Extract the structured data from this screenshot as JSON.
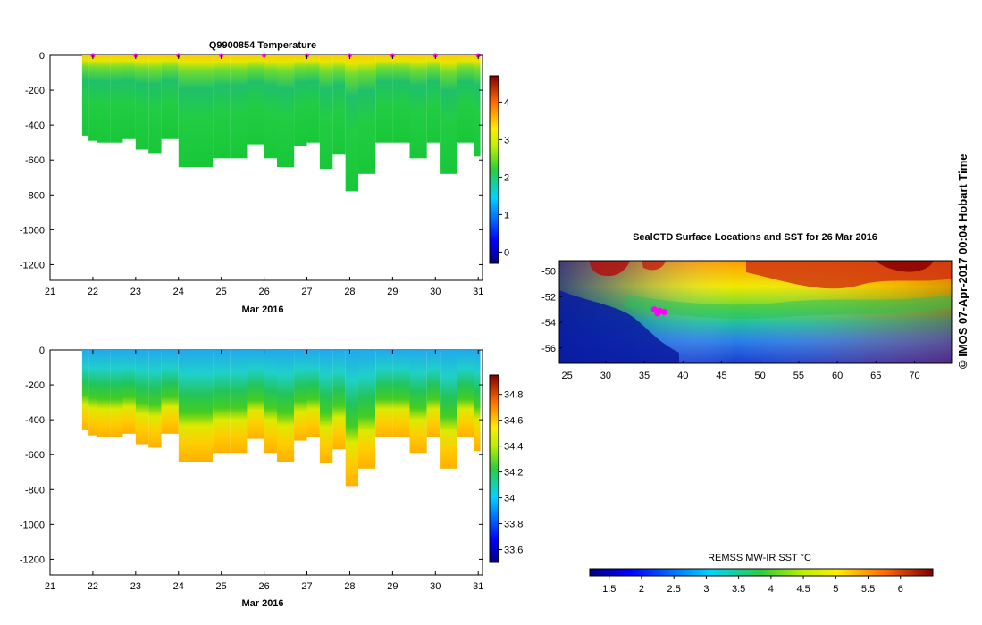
{
  "footer": {
    "credit": "© IMOS 07-Apr-2017 00:04 Hobart Time"
  },
  "chart_data": [
    {
      "id": "temperature-section",
      "type": "heatmap",
      "title": "Q9900854  Temperature",
      "xlabel": "Mar 2016",
      "ylabel": "",
      "x_ticks": [
        "21",
        "22",
        "23",
        "24",
        "25",
        "26",
        "27",
        "28",
        "29",
        "30",
        "31"
      ],
      "xlim": [
        21,
        31.1
      ],
      "y_ticks": [
        0,
        -200,
        -400,
        -600,
        -800,
        -1000,
        -1200
      ],
      "ylim": [
        -1290,
        0
      ],
      "colorbar": {
        "ticks": [
          0,
          1,
          2,
          3,
          4
        ],
        "range": [
          -0.3,
          4.7
        ],
        "colormap": "jet"
      },
      "profiles": [
        {
          "day": 21.75,
          "max_depth": 460
        },
        {
          "day": 21.9,
          "max_depth": 490
        },
        {
          "day": 22.1,
          "max_depth": 500
        },
        {
          "day": 22.4,
          "max_depth": 500
        },
        {
          "day": 22.7,
          "max_depth": 480
        },
        {
          "day": 23.0,
          "max_depth": 540
        },
        {
          "day": 23.3,
          "max_depth": 560
        },
        {
          "day": 23.6,
          "max_depth": 480
        },
        {
          "day": 24.0,
          "max_depth": 640
        },
        {
          "day": 24.4,
          "max_depth": 640
        },
        {
          "day": 24.8,
          "max_depth": 590
        },
        {
          "day": 25.2,
          "max_depth": 590
        },
        {
          "day": 25.6,
          "max_depth": 510
        },
        {
          "day": 26.0,
          "max_depth": 590
        },
        {
          "day": 26.3,
          "max_depth": 640
        },
        {
          "day": 26.7,
          "max_depth": 520
        },
        {
          "day": 27.0,
          "max_depth": 500
        },
        {
          "day": 27.3,
          "max_depth": 650
        },
        {
          "day": 27.6,
          "max_depth": 570
        },
        {
          "day": 27.9,
          "max_depth": 780
        },
        {
          "day": 28.2,
          "max_depth": 680
        },
        {
          "day": 28.6,
          "max_depth": 500
        },
        {
          "day": 29.0,
          "max_depth": 500
        },
        {
          "day": 29.4,
          "max_depth": 590
        },
        {
          "day": 29.8,
          "max_depth": 500
        },
        {
          "day": 30.1,
          "max_depth": 680
        },
        {
          "day": 30.5,
          "max_depth": 500
        },
        {
          "day": 30.9,
          "max_depth": 580
        }
      ],
      "surface_markers": [
        22,
        23,
        24,
        25,
        26,
        27,
        28,
        29,
        30,
        31
      ]
    },
    {
      "id": "salinity-section",
      "type": "heatmap",
      "title": "",
      "xlabel": "Mar 2016",
      "ylabel": "",
      "x_ticks": [
        "21",
        "22",
        "23",
        "24",
        "25",
        "26",
        "27",
        "28",
        "29",
        "30",
        "31"
      ],
      "xlim": [
        21,
        31.1
      ],
      "y_ticks": [
        0,
        -200,
        -400,
        -600,
        -800,
        -1000,
        -1200
      ],
      "ylim": [
        -1290,
        0
      ],
      "colorbar": {
        "ticks": [
          33.6,
          33.8,
          34,
          34.2,
          34.4,
          34.6,
          34.8
        ],
        "labels": [
          "33.6",
          "33.8",
          "34",
          "34.2",
          "34.4",
          "34.6",
          "34.8"
        ],
        "range": [
          33.5,
          34.95
        ],
        "colormap": "jet"
      }
    },
    {
      "id": "sst-map",
      "type": "heatmap",
      "title": "SealCTD Surface Locations and SST for 26 Mar 2016",
      "x_ticks": [
        "25",
        "30",
        "35",
        "40",
        "45",
        "50",
        "55",
        "60",
        "65",
        "70"
      ],
      "xlim": [
        24,
        74.8
      ],
      "y_ticks": [
        "-50",
        "-52",
        "-54",
        "-56"
      ],
      "ylim": [
        -57.2,
        -49.2
      ],
      "colorbar": {
        "label": "REMSS MW-IR SST °C",
        "ticks": [
          "1.5",
          "2",
          "2.5",
          "3",
          "3.5",
          "4",
          "4.5",
          "5",
          "5.5",
          "6"
        ],
        "range": [
          1.2,
          6.5
        ],
        "colormap": "jet"
      },
      "seal_locations": [
        {
          "lon": 36.3,
          "lat": -53.0
        },
        {
          "lon": 36.7,
          "lat": -53.3
        },
        {
          "lon": 37.0,
          "lat": -53.1
        },
        {
          "lon": 37.6,
          "lat": -53.2
        }
      ]
    }
  ]
}
